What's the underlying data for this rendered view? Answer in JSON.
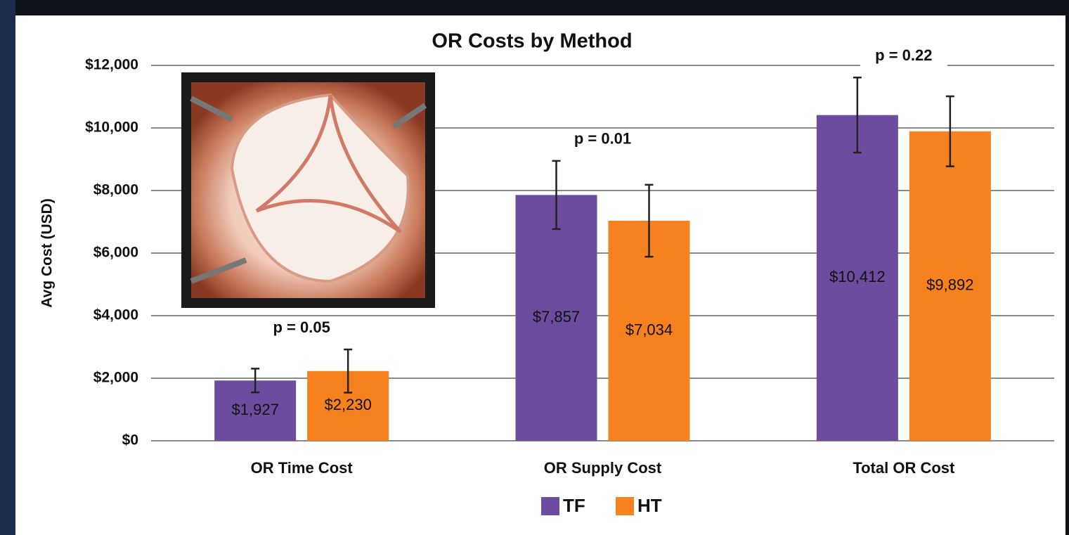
{
  "chart_data": {
    "type": "bar",
    "title": "OR Costs by Method",
    "y_label": "Avg Cost (USD)",
    "categories": [
      "OR Time Cost",
      "OR Supply Cost",
      "Total OR Cost"
    ],
    "series": [
      {
        "name": "TF",
        "color": "#6b4c9e",
        "values": [
          1927,
          7857,
          10412
        ],
        "value_labels": [
          "$1,927",
          "$7,857",
          "$10,412"
        ],
        "errors": [
          380,
          1090,
          1200
        ]
      },
      {
        "name": "HT",
        "color": "#f5821f",
        "values": [
          2230,
          7034,
          9892
        ],
        "value_labels": [
          "$2,230",
          "$7,034",
          "$9,892"
        ],
        "errors": [
          690,
          1150,
          1120
        ]
      }
    ],
    "annotations": [
      "p = 0.05",
      "p = 0.01",
      "p = 0.22"
    ],
    "ylim": [
      0,
      12000
    ],
    "yticks": [
      {
        "value": 0,
        "label": "$0"
      },
      {
        "value": 2000,
        "label": "$2,000"
      },
      {
        "value": 4000,
        "label": "$4,000"
      },
      {
        "value": 6000,
        "label": "$6,000"
      },
      {
        "value": 8000,
        "label": "$8,000"
      },
      {
        "value": 10000,
        "label": "$10,000"
      },
      {
        "value": 12000,
        "label": "$12,000"
      }
    ],
    "grid": true,
    "legend": "bottom"
  }
}
